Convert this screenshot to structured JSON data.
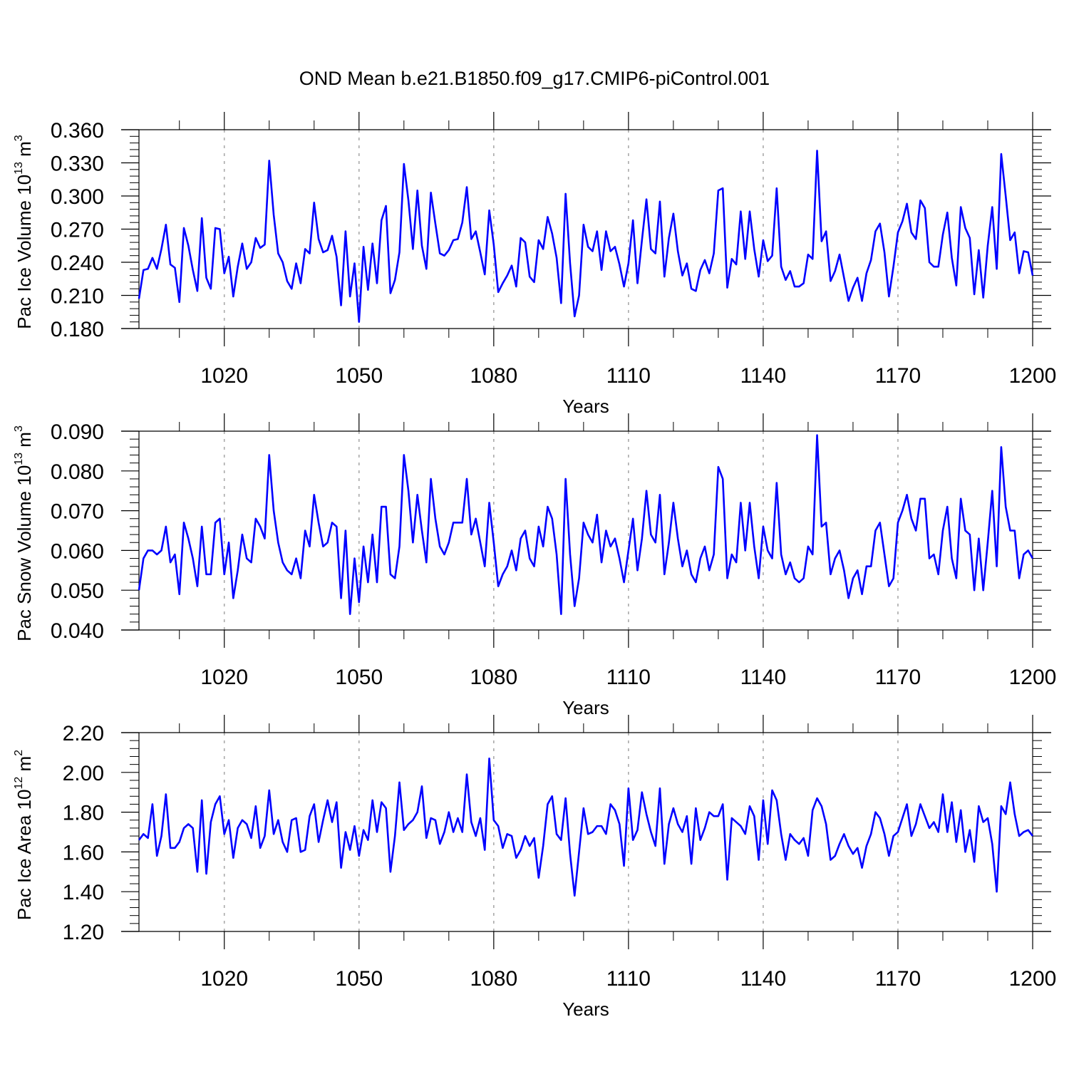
{
  "title": "OND Mean b.e21.B1850.f09_g17.CMIP6-piControl.001",
  "chart_data": [
    {
      "type": "line",
      "name": "ice-volume",
      "ylabel": {
        "main": "Pac Ice Volume 10",
        "sup": "13",
        "unit": " m",
        "unit_sup": "3"
      },
      "xlabel": "Years",
      "x_start": 1001,
      "xlim": [
        1001,
        1200
      ],
      "ylim": [
        0.18,
        0.36
      ],
      "yticks": [
        0.18,
        0.21,
        0.24,
        0.27,
        0.3,
        0.33,
        0.36
      ],
      "ytick_labels": [
        "0.180",
        "0.210",
        "0.240",
        "0.270",
        "0.300",
        "0.330",
        "0.360"
      ],
      "xticks": [
        1020,
        1050,
        1080,
        1110,
        1140,
        1170,
        1200
      ],
      "xtick_labels": [
        "1020",
        "1050",
        "1080",
        "1110",
        "1140",
        "1170",
        "1200"
      ],
      "values": [
        0.207,
        0.233,
        0.234,
        0.244,
        0.234,
        0.252,
        0.274,
        0.238,
        0.235,
        0.204,
        0.271,
        0.255,
        0.233,
        0.214,
        0.28,
        0.226,
        0.216,
        0.271,
        0.27,
        0.23,
        0.245,
        0.209,
        0.236,
        0.257,
        0.234,
        0.24,
        0.262,
        0.253,
        0.256,
        0.332,
        0.283,
        0.248,
        0.24,
        0.223,
        0.216,
        0.239,
        0.221,
        0.252,
        0.248,
        0.294,
        0.261,
        0.249,
        0.251,
        0.264,
        0.245,
        0.201,
        0.268,
        0.209,
        0.239,
        0.186,
        0.254,
        0.215,
        0.257,
        0.221,
        0.278,
        0.291,
        0.212,
        0.224,
        0.249,
        0.329,
        0.296,
        0.252,
        0.305,
        0.255,
        0.234,
        0.303,
        0.275,
        0.248,
        0.246,
        0.251,
        0.26,
        0.261,
        0.276,
        0.308,
        0.261,
        0.268,
        0.249,
        0.229,
        0.287,
        0.256,
        0.213,
        0.221,
        0.228,
        0.237,
        0.218,
        0.262,
        0.258,
        0.227,
        0.222,
        0.26,
        0.252,
        0.281,
        0.266,
        0.244,
        0.203,
        0.302,
        0.239,
        0.191,
        0.21,
        0.274,
        0.254,
        0.25,
        0.268,
        0.233,
        0.268,
        0.25,
        0.254,
        0.238,
        0.218,
        0.239,
        0.278,
        0.221,
        0.26,
        0.297,
        0.252,
        0.248,
        0.295,
        0.227,
        0.262,
        0.284,
        0.25,
        0.228,
        0.239,
        0.216,
        0.214,
        0.233,
        0.242,
        0.23,
        0.248,
        0.305,
        0.307,
        0.217,
        0.243,
        0.238,
        0.286,
        0.243,
        0.286,
        0.252,
        0.227,
        0.26,
        0.241,
        0.246,
        0.307,
        0.236,
        0.224,
        0.232,
        0.218,
        0.218,
        0.221,
        0.247,
        0.243,
        0.341,
        0.259,
        0.268,
        0.223,
        0.232,
        0.247,
        0.226,
        0.205,
        0.217,
        0.226,
        0.205,
        0.23,
        0.242,
        0.268,
        0.275,
        0.249,
        0.209,
        0.236,
        0.267,
        0.277,
        0.293,
        0.267,
        0.261,
        0.296,
        0.289,
        0.24,
        0.236,
        0.236,
        0.265,
        0.285,
        0.244,
        0.219,
        0.29,
        0.271,
        0.262,
        0.211,
        0.251,
        0.208,
        0.255,
        0.29,
        0.234,
        0.338,
        0.3,
        0.26,
        0.267,
        0.23,
        0.25,
        0.249,
        0.228
      ]
    },
    {
      "type": "line",
      "name": "snow-volume",
      "ylabel": {
        "main": "Pac Snow Volume 10",
        "sup": "13",
        "unit": " m",
        "unit_sup": "3"
      },
      "xlabel": "Years",
      "x_start": 1001,
      "xlim": [
        1001,
        1200
      ],
      "ylim": [
        0.04,
        0.09
      ],
      "yticks": [
        0.04,
        0.05,
        0.06,
        0.07,
        0.08,
        0.09
      ],
      "ytick_labels": [
        "0.040",
        "0.050",
        "0.060",
        "0.070",
        "0.080",
        "0.090"
      ],
      "xticks": [
        1020,
        1050,
        1080,
        1110,
        1140,
        1170,
        1200
      ],
      "xtick_labels": [
        "1020",
        "1050",
        "1080",
        "1110",
        "1140",
        "1170",
        "1200"
      ],
      "values": [
        0.05,
        0.058,
        0.06,
        0.06,
        0.059,
        0.06,
        0.066,
        0.057,
        0.059,
        0.049,
        0.067,
        0.063,
        0.058,
        0.051,
        0.066,
        0.054,
        0.054,
        0.067,
        0.068,
        0.054,
        0.062,
        0.048,
        0.055,
        0.064,
        0.058,
        0.057,
        0.068,
        0.066,
        0.063,
        0.084,
        0.07,
        0.062,
        0.057,
        0.055,
        0.054,
        0.058,
        0.053,
        0.065,
        0.061,
        0.074,
        0.067,
        0.061,
        0.062,
        0.067,
        0.066,
        0.048,
        0.065,
        0.044,
        0.058,
        0.047,
        0.061,
        0.052,
        0.064,
        0.052,
        0.071,
        0.071,
        0.054,
        0.053,
        0.061,
        0.084,
        0.075,
        0.062,
        0.074,
        0.065,
        0.057,
        0.078,
        0.068,
        0.061,
        0.059,
        0.062,
        0.067,
        0.067,
        0.067,
        0.078,
        0.064,
        0.068,
        0.062,
        0.056,
        0.072,
        0.062,
        0.051,
        0.054,
        0.056,
        0.06,
        0.055,
        0.063,
        0.065,
        0.058,
        0.056,
        0.066,
        0.061,
        0.071,
        0.068,
        0.059,
        0.044,
        0.078,
        0.059,
        0.046,
        0.053,
        0.067,
        0.064,
        0.062,
        0.069,
        0.057,
        0.065,
        0.061,
        0.063,
        0.058,
        0.052,
        0.06,
        0.068,
        0.055,
        0.063,
        0.075,
        0.064,
        0.062,
        0.074,
        0.054,
        0.062,
        0.072,
        0.063,
        0.056,
        0.06,
        0.054,
        0.052,
        0.058,
        0.061,
        0.055,
        0.059,
        0.081,
        0.078,
        0.053,
        0.059,
        0.057,
        0.072,
        0.06,
        0.072,
        0.061,
        0.053,
        0.066,
        0.06,
        0.058,
        0.077,
        0.059,
        0.054,
        0.057,
        0.053,
        0.052,
        0.053,
        0.061,
        0.059,
        0.089,
        0.066,
        0.067,
        0.054,
        0.058,
        0.06,
        0.055,
        0.048,
        0.053,
        0.055,
        0.049,
        0.056,
        0.056,
        0.065,
        0.067,
        0.059,
        0.051,
        0.053,
        0.067,
        0.07,
        0.074,
        0.068,
        0.065,
        0.073,
        0.073,
        0.058,
        0.059,
        0.054,
        0.065,
        0.071,
        0.058,
        0.053,
        0.073,
        0.065,
        0.064,
        0.05,
        0.063,
        0.05,
        0.062,
        0.075,
        0.056,
        0.086,
        0.071,
        0.065,
        0.065,
        0.053,
        0.059,
        0.06,
        0.058
      ]
    },
    {
      "type": "line",
      "name": "ice-area",
      "ylabel": {
        "main": "Pac Ice Area 10",
        "sup": "12",
        "unit": " m",
        "unit_sup": "2"
      },
      "xlabel": "Years",
      "x_start": 1001,
      "xlim": [
        1001,
        1200
      ],
      "ylim": [
        1.2,
        2.2
      ],
      "yticks": [
        1.2,
        1.4,
        1.6,
        1.8,
        2.0,
        2.2
      ],
      "ytick_labels": [
        "1.20",
        "1.40",
        "1.60",
        "1.80",
        "2.00",
        "2.20"
      ],
      "xticks": [
        1020,
        1050,
        1080,
        1110,
        1140,
        1170,
        1200
      ],
      "xtick_labels": [
        "1020",
        "1050",
        "1080",
        "1110",
        "1140",
        "1170",
        "1200"
      ],
      "values": [
        1.66,
        1.69,
        1.67,
        1.84,
        1.58,
        1.68,
        1.89,
        1.62,
        1.62,
        1.65,
        1.72,
        1.74,
        1.72,
        1.5,
        1.86,
        1.49,
        1.75,
        1.84,
        1.88,
        1.69,
        1.76,
        1.57,
        1.72,
        1.76,
        1.74,
        1.67,
        1.83,
        1.62,
        1.68,
        1.91,
        1.69,
        1.76,
        1.65,
        1.6,
        1.76,
        1.77,
        1.6,
        1.61,
        1.78,
        1.84,
        1.65,
        1.76,
        1.86,
        1.75,
        1.85,
        1.52,
        1.7,
        1.61,
        1.73,
        1.58,
        1.71,
        1.66,
        1.86,
        1.7,
        1.85,
        1.82,
        1.5,
        1.68,
        1.95,
        1.71,
        1.74,
        1.76,
        1.8,
        1.93,
        1.67,
        1.77,
        1.76,
        1.64,
        1.7,
        1.8,
        1.7,
        1.77,
        1.7,
        1.99,
        1.75,
        1.68,
        1.77,
        1.61,
        2.07,
        1.76,
        1.73,
        1.62,
        1.69,
        1.68,
        1.57,
        1.61,
        1.68,
        1.63,
        1.67,
        1.47,
        1.63,
        1.84,
        1.88,
        1.69,
        1.66,
        1.87,
        1.59,
        1.38,
        1.6,
        1.82,
        1.69,
        1.7,
        1.73,
        1.73,
        1.69,
        1.84,
        1.81,
        1.74,
        1.53,
        1.92,
        1.66,
        1.71,
        1.9,
        1.79,
        1.7,
        1.63,
        1.92,
        1.54,
        1.74,
        1.82,
        1.74,
        1.7,
        1.78,
        1.54,
        1.82,
        1.66,
        1.72,
        1.8,
        1.78,
        1.78,
        1.84,
        1.46,
        1.77,
        1.75,
        1.73,
        1.69,
        1.83,
        1.78,
        1.56,
        1.86,
        1.64,
        1.91,
        1.86,
        1.69,
        1.56,
        1.69,
        1.66,
        1.64,
        1.67,
        1.58,
        1.81,
        1.87,
        1.83,
        1.74,
        1.56,
        1.58,
        1.64,
        1.69,
        1.63,
        1.59,
        1.62,
        1.52,
        1.63,
        1.69,
        1.8,
        1.77,
        1.69,
        1.58,
        1.68,
        1.7,
        1.77,
        1.84,
        1.68,
        1.74,
        1.84,
        1.78,
        1.72,
        1.75,
        1.7,
        1.89,
        1.7,
        1.85,
        1.65,
        1.81,
        1.6,
        1.71,
        1.55,
        1.83,
        1.75,
        1.77,
        1.64,
        1.4,
        1.83,
        1.79,
        1.95,
        1.79,
        1.68,
        1.7,
        1.71,
        1.68
      ]
    }
  ],
  "colors": {
    "series": "#0000ff",
    "axis": "#000000",
    "grid": "#aaaaaa"
  }
}
